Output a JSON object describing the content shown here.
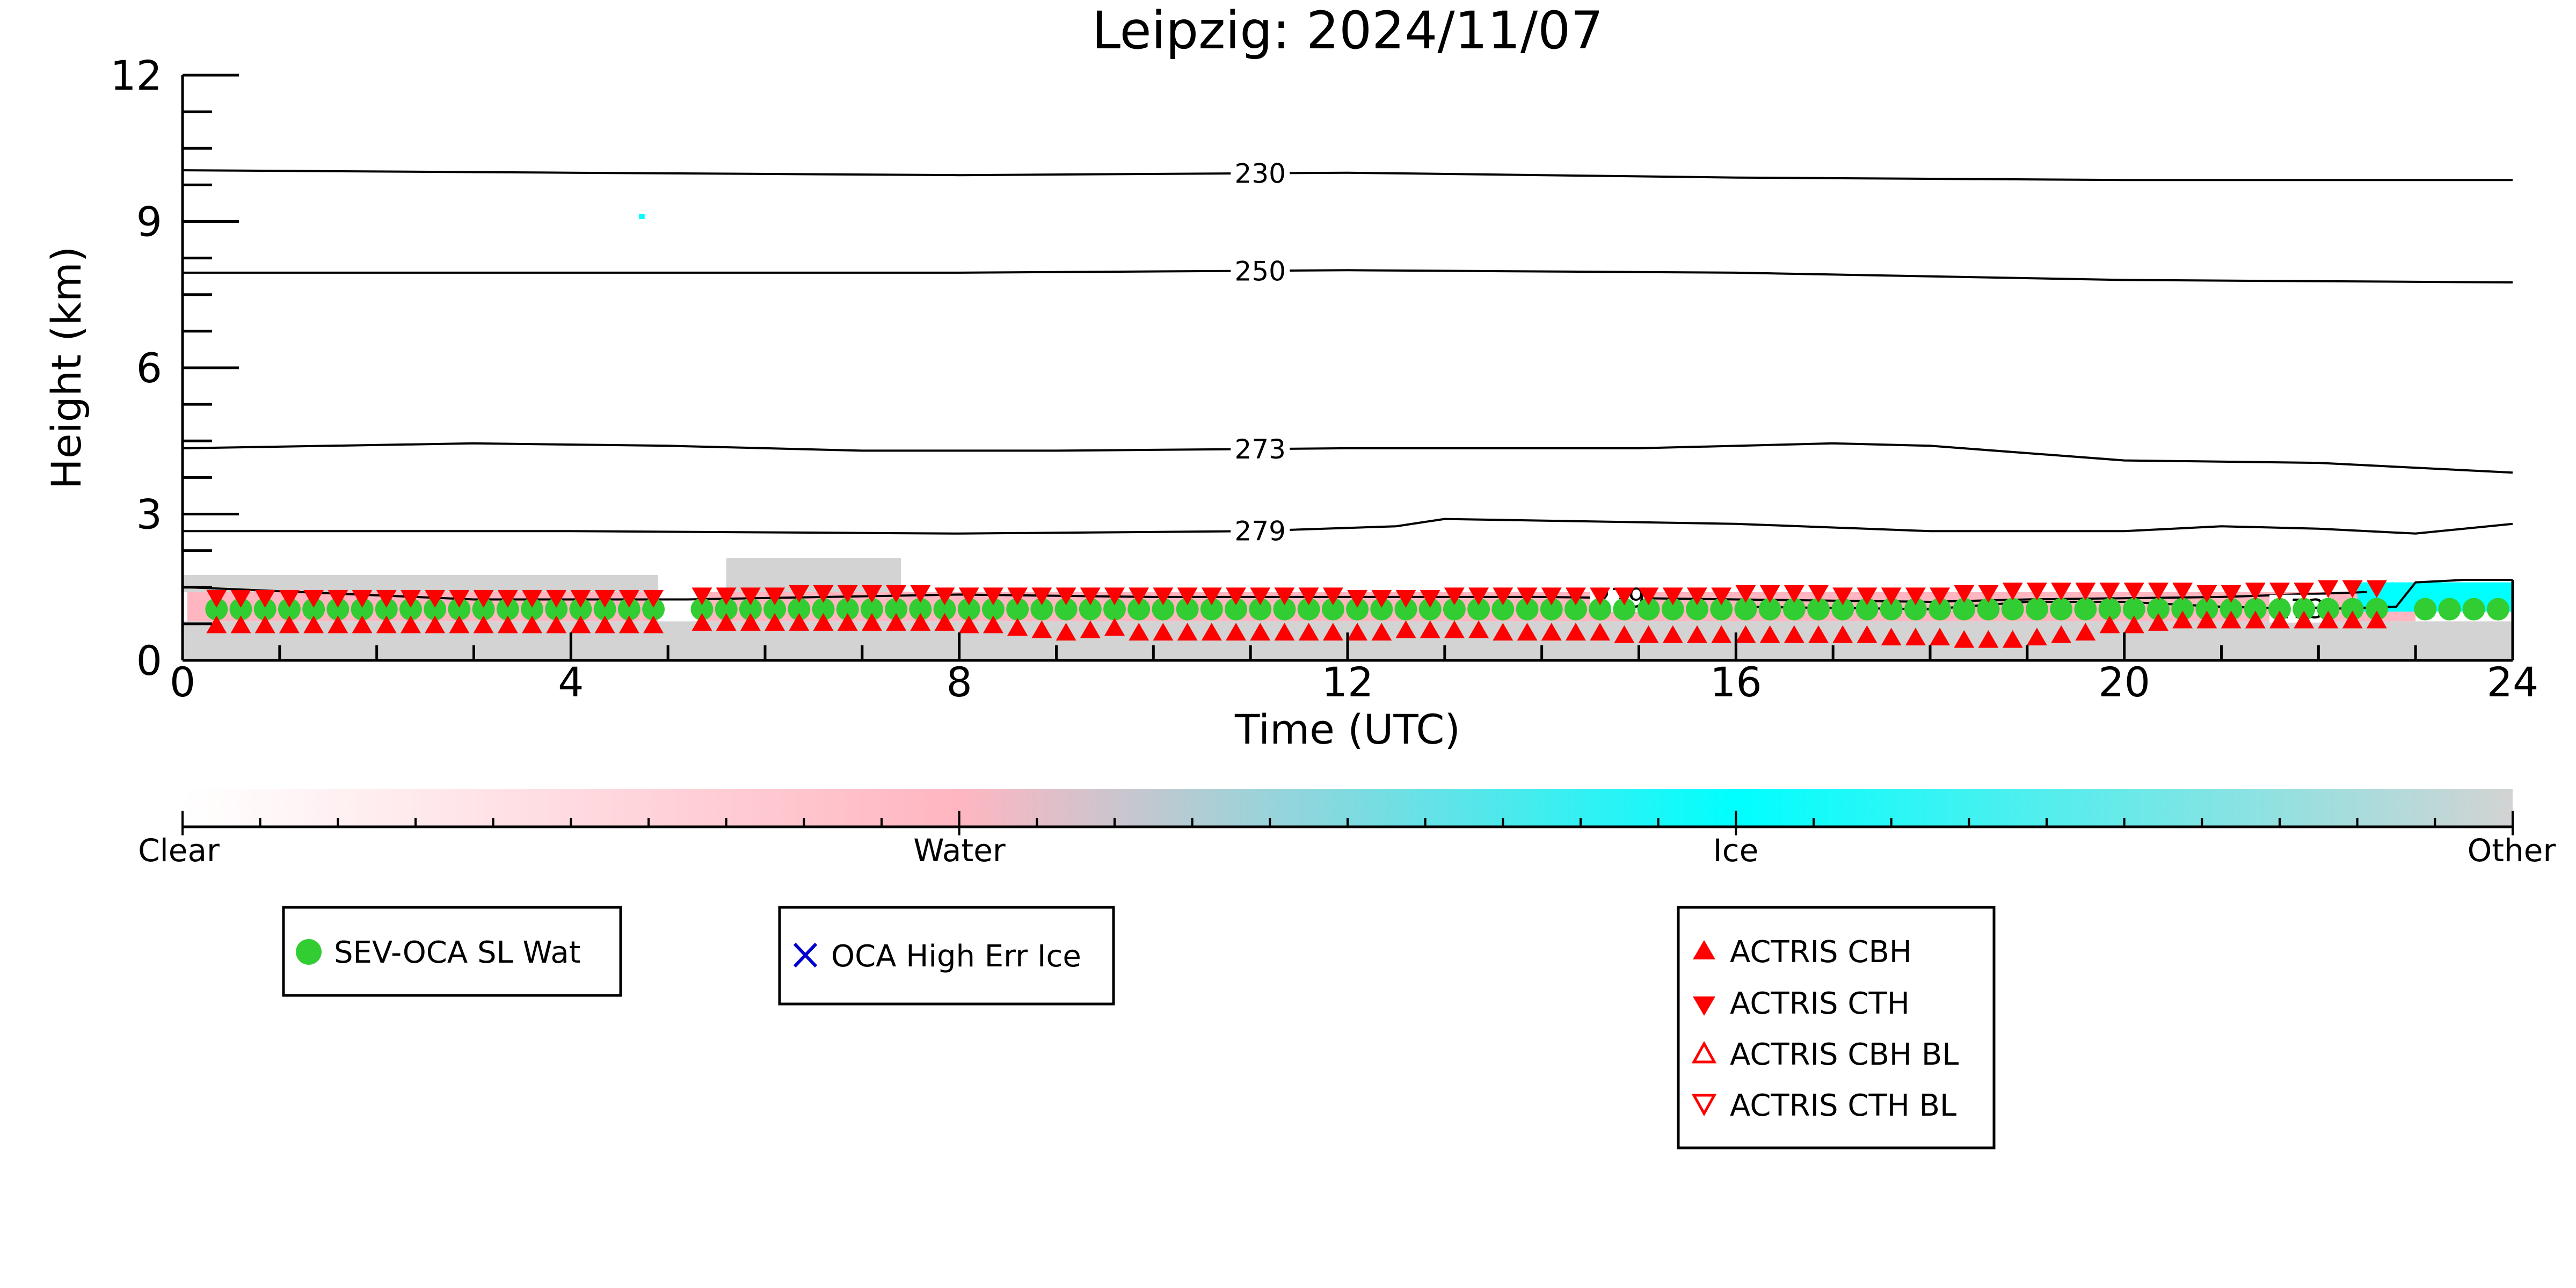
{
  "title": "Leipzig: 2024/11/07",
  "colors": {
    "water": "#ffb6c1",
    "ice": "#00ffff",
    "other": "#d3d3d3",
    "oca_sl_wat": "#32cd32",
    "oca_high_err_ice": "#0000cd",
    "actris": "#ff0000",
    "contour": "#000000"
  },
  "chart_data": {
    "type": "scatter",
    "title": "Leipzig: 2024/11/07",
    "xlabel": "Time (UTC)",
    "ylabel": "Height (km)",
    "xlim": [
      0,
      24
    ],
    "ylim": [
      0,
      12
    ],
    "xticks": [
      0,
      4,
      8,
      12,
      16,
      20,
      24
    ],
    "yticks": [
      0,
      3,
      6,
      9,
      12
    ],
    "grid": false,
    "classification_colorbar": {
      "labels": [
        "Clear",
        "Water",
        "Ice",
        "Other"
      ],
      "positions": [
        0,
        0.333,
        0.667,
        1.0
      ]
    },
    "background_classification": [
      {
        "class": "Water",
        "segments": [
          [
            0.05,
            4.9,
            0.8,
            1.4
          ],
          [
            5.4,
            23.0,
            0.8,
            1.4
          ],
          [
            8.6,
            22.8,
            0.4,
            0.8
          ]
        ]
      },
      {
        "class": "Other",
        "segments": [
          [
            0,
            24,
            0,
            0.8
          ],
          [
            0,
            4.9,
            1.4,
            1.75
          ],
          [
            5.6,
            7.4,
            1.4,
            2.1
          ]
        ]
      },
      {
        "class": "Ice",
        "segments": [
          [
            22.4,
            24,
            1.0,
            1.6
          ],
          [
            4.7,
            4.76,
            9.05,
            9.15
          ]
        ]
      }
    ],
    "temperature_contours": [
      {
        "label": "230",
        "x": [
          0,
          4,
          8,
          12,
          16,
          20,
          24
        ],
        "y": [
          10.05,
          10.0,
          9.95,
          10.0,
          9.9,
          9.85,
          9.85
        ]
      },
      {
        "label": "250",
        "x": [
          0,
          4,
          8,
          12,
          16,
          20,
          24
        ],
        "y": [
          7.95,
          7.95,
          7.95,
          8.0,
          7.95,
          7.8,
          7.75
        ]
      },
      {
        "label": "273",
        "x": [
          0,
          3,
          5,
          7,
          9,
          12,
          15,
          17,
          18,
          20,
          22,
          24
        ],
        "y": [
          4.35,
          4.45,
          4.4,
          4.3,
          4.3,
          4.35,
          4.35,
          4.45,
          4.4,
          4.1,
          4.05,
          3.85
        ]
      },
      {
        "label": "279",
        "x": [
          0,
          4,
          8,
          11,
          12.5,
          13,
          16,
          18,
          20,
          21,
          22,
          23,
          24
        ],
        "y": [
          2.65,
          2.65,
          2.6,
          2.65,
          2.75,
          2.9,
          2.8,
          2.65,
          2.65,
          2.75,
          2.7,
          2.6,
          2.8
        ]
      },
      {
        "label": "279",
        "x": [
          0.05,
          3,
          5.2,
          8,
          10,
          14,
          16,
          18,
          19,
          21,
          22.5
        ],
        "y": [
          1.5,
          1.25,
          1.25,
          1.35,
          1.3,
          1.3,
          1.25,
          1.2,
          1.25,
          1.3,
          1.4
        ]
      },
      {
        "label": "273",
        "x": [
          16,
          18,
          19,
          20,
          21,
          22,
          22.8,
          23,
          23.5,
          24
        ],
        "y": [
          1.1,
          1.05,
          1.2,
          1.2,
          1.1,
          1.05,
          1.1,
          1.6,
          1.65,
          1.65
        ]
      }
    ],
    "series": [
      {
        "name": "SEV-OCA SL Wat",
        "marker": "circle-filled",
        "x": [
          0.35,
          0.6,
          0.85,
          1.1,
          1.35,
          1.6,
          1.85,
          2.1,
          2.35,
          2.6,
          2.85,
          3.1,
          3.35,
          3.6,
          3.85,
          4.1,
          4.35,
          4.6,
          4.85,
          5.35,
          5.6,
          5.85,
          6.1,
          6.35,
          6.6,
          6.85,
          7.1,
          7.35,
          7.6,
          7.85,
          8.1,
          8.35,
          8.6,
          8.85,
          9.1,
          9.35,
          9.6,
          9.85,
          10.1,
          10.35,
          10.6,
          10.85,
          11.1,
          11.35,
          11.6,
          11.85,
          12.1,
          12.35,
          12.6,
          12.85,
          13.1,
          13.35,
          13.6,
          13.85,
          14.1,
          14.35,
          14.6,
          14.85,
          15.1,
          15.35,
          15.6,
          15.85,
          16.1,
          16.35,
          16.6,
          16.85,
          17.1,
          17.35,
          17.6,
          17.85,
          18.1,
          18.35,
          18.6,
          18.85,
          19.1,
          19.35,
          19.6,
          19.85,
          20.1,
          20.35,
          20.6,
          20.85,
          21.1,
          21.35,
          21.6,
          21.85,
          22.1,
          22.35,
          22.6,
          23.1,
          23.35,
          23.6,
          23.85
        ],
        "y": [
          1.05,
          1.05,
          1.05,
          1.05,
          1.05,
          1.05,
          1.05,
          1.05,
          1.05,
          1.05,
          1.05,
          1.05,
          1.05,
          1.05,
          1.05,
          1.05,
          1.05,
          1.05,
          1.05,
          1.05,
          1.05,
          1.05,
          1.05,
          1.05,
          1.05,
          1.05,
          1.05,
          1.05,
          1.05,
          1.05,
          1.05,
          1.05,
          1.05,
          1.05,
          1.05,
          1.05,
          1.05,
          1.05,
          1.05,
          1.05,
          1.05,
          1.05,
          1.05,
          1.05,
          1.05,
          1.05,
          1.05,
          1.05,
          1.05,
          1.05,
          1.05,
          1.05,
          1.05,
          1.05,
          1.05,
          1.05,
          1.05,
          1.05,
          1.05,
          1.05,
          1.05,
          1.05,
          1.05,
          1.05,
          1.05,
          1.05,
          1.05,
          1.05,
          1.05,
          1.05,
          1.05,
          1.05,
          1.05,
          1.05,
          1.05,
          1.05,
          1.05,
          1.05,
          1.05,
          1.05,
          1.05,
          1.05,
          1.05,
          1.05,
          1.05,
          1.05,
          1.05,
          1.05,
          1.05,
          1.05,
          1.05,
          1.05,
          1.05
        ]
      },
      {
        "name": "OCA High Err Ice",
        "marker": "x",
        "x": [],
        "y": []
      },
      {
        "name": "ACTRIS CBH",
        "marker": "triangle-up-filled",
        "x": [
          0.35,
          0.6,
          0.85,
          1.1,
          1.35,
          1.6,
          1.85,
          2.1,
          2.35,
          2.6,
          2.85,
          3.1,
          3.35,
          3.6,
          3.85,
          4.1,
          4.35,
          4.6,
          4.85,
          5.35,
          5.6,
          5.85,
          6.1,
          6.35,
          6.6,
          6.85,
          7.1,
          7.35,
          7.6,
          7.85,
          8.1,
          8.35,
          8.6,
          8.85,
          9.1,
          9.35,
          9.6,
          9.85,
          10.1,
          10.35,
          10.6,
          10.85,
          11.1,
          11.35,
          11.6,
          11.85,
          12.1,
          12.35,
          12.6,
          12.85,
          13.1,
          13.35,
          13.6,
          13.85,
          14.1,
          14.35,
          14.6,
          14.85,
          15.1,
          15.35,
          15.6,
          15.85,
          16.1,
          16.35,
          16.6,
          16.85,
          17.1,
          17.35,
          17.6,
          17.85,
          18.1,
          18.35,
          18.6,
          18.85,
          19.1,
          19.35,
          19.6,
          19.85,
          20.1,
          20.35,
          20.6,
          20.85,
          21.1,
          21.35,
          21.6,
          21.85,
          22.1,
          22.35,
          22.6
        ],
        "y": [
          0.7,
          0.7,
          0.7,
          0.7,
          0.7,
          0.7,
          0.7,
          0.7,
          0.7,
          0.7,
          0.7,
          0.7,
          0.7,
          0.7,
          0.7,
          0.7,
          0.7,
          0.7,
          0.7,
          0.75,
          0.75,
          0.75,
          0.75,
          0.75,
          0.75,
          0.75,
          0.75,
          0.75,
          0.75,
          0.75,
          0.7,
          0.7,
          0.65,
          0.6,
          0.55,
          0.6,
          0.65,
          0.55,
          0.55,
          0.55,
          0.55,
          0.55,
          0.55,
          0.55,
          0.55,
          0.55,
          0.55,
          0.55,
          0.6,
          0.6,
          0.6,
          0.6,
          0.55,
          0.55,
          0.55,
          0.55,
          0.55,
          0.5,
          0.5,
          0.5,
          0.5,
          0.5,
          0.5,
          0.5,
          0.5,
          0.5,
          0.5,
          0.5,
          0.45,
          0.45,
          0.45,
          0.4,
          0.4,
          0.4,
          0.45,
          0.5,
          0.55,
          0.7,
          0.7,
          0.75,
          0.8,
          0.8,
          0.8,
          0.8,
          0.8,
          0.8,
          0.8,
          0.8,
          0.8
        ]
      },
      {
        "name": "ACTRIS CTH",
        "marker": "triangle-down-filled",
        "x": [
          0.35,
          0.6,
          0.85,
          1.1,
          1.35,
          1.6,
          1.85,
          2.1,
          2.35,
          2.6,
          2.85,
          3.1,
          3.35,
          3.6,
          3.85,
          4.1,
          4.35,
          4.6,
          4.85,
          5.35,
          5.6,
          5.85,
          6.1,
          6.35,
          6.6,
          6.85,
          7.1,
          7.35,
          7.6,
          7.85,
          8.1,
          8.35,
          8.6,
          8.85,
          9.1,
          9.35,
          9.6,
          9.85,
          10.1,
          10.35,
          10.6,
          10.85,
          11.1,
          11.35,
          11.6,
          11.85,
          12.1,
          12.35,
          12.6,
          12.85,
          13.1,
          13.35,
          13.6,
          13.85,
          14.1,
          14.35,
          14.6,
          14.85,
          15.1,
          15.35,
          15.6,
          15.85,
          16.1,
          16.35,
          16.6,
          16.85,
          17.1,
          17.35,
          17.6,
          17.85,
          18.1,
          18.35,
          18.6,
          18.85,
          19.1,
          19.35,
          19.6,
          19.85,
          20.1,
          20.35,
          20.6,
          20.85,
          21.1,
          21.35,
          21.6,
          21.85,
          22.1,
          22.35,
          22.6
        ],
        "y": [
          1.3,
          1.3,
          1.3,
          1.3,
          1.3,
          1.3,
          1.3,
          1.3,
          1.3,
          1.3,
          1.3,
          1.3,
          1.3,
          1.3,
          1.3,
          1.3,
          1.3,
          1.3,
          1.3,
          1.35,
          1.35,
          1.35,
          1.35,
          1.4,
          1.4,
          1.4,
          1.4,
          1.4,
          1.4,
          1.35,
          1.35,
          1.35,
          1.35,
          1.35,
          1.35,
          1.35,
          1.35,
          1.35,
          1.35,
          1.35,
          1.35,
          1.35,
          1.35,
          1.35,
          1.35,
          1.35,
          1.3,
          1.3,
          1.3,
          1.3,
          1.35,
          1.35,
          1.35,
          1.35,
          1.35,
          1.35,
          1.35,
          1.35,
          1.35,
          1.35,
          1.35,
          1.35,
          1.4,
          1.4,
          1.4,
          1.4,
          1.35,
          1.35,
          1.35,
          1.35,
          1.35,
          1.4,
          1.4,
          1.45,
          1.45,
          1.45,
          1.45,
          1.45,
          1.45,
          1.45,
          1.45,
          1.4,
          1.4,
          1.45,
          1.45,
          1.45,
          1.5,
          1.5,
          1.5
        ]
      },
      {
        "name": "ACTRIS CBH BL",
        "marker": "triangle-up-open",
        "x": [],
        "y": []
      },
      {
        "name": "ACTRIS CTH BL",
        "marker": "triangle-down-open",
        "x": [],
        "y": []
      }
    ],
    "legends": [
      {
        "entries": [
          "SEV-OCA SL Wat"
        ]
      },
      {
        "entries": [
          "OCA High Err Ice"
        ]
      },
      {
        "entries": [
          "ACTRIS CBH",
          "ACTRIS CTH",
          "ACTRIS CBH BL",
          "ACTRIS CTH BL"
        ]
      }
    ]
  }
}
